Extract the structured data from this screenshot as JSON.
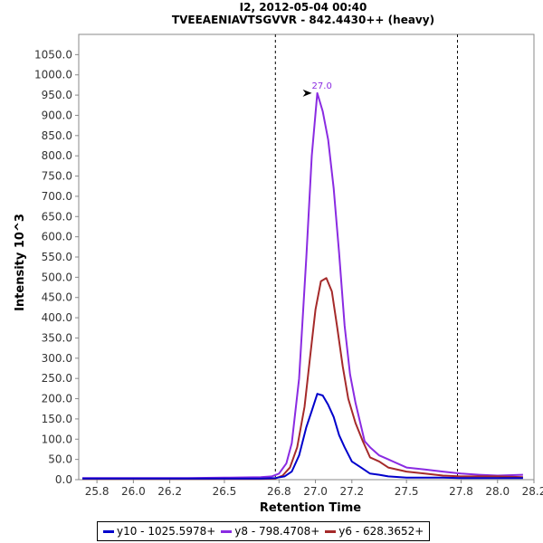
{
  "chart_data": {
    "type": "line",
    "title": "I2, 2012-05-04 00:40",
    "subtitle": "TVEEAENIAVTSGVVR - 842.4430++ (heavy)",
    "xlabel": "Retention Time",
    "ylabel": "Intensity 10^3",
    "xlim": [
      25.7,
      28.2
    ],
    "ylim": [
      0,
      1100
    ],
    "x_ticks": [
      "25.8",
      "26.0",
      "26.2",
      "26.5",
      "26.8",
      "27.0",
      "27.2",
      "27.5",
      "27.8",
      "28.0",
      "28.2"
    ],
    "x_tick_values": [
      25.8,
      26.0,
      26.2,
      26.5,
      26.8,
      27.0,
      27.2,
      27.5,
      27.8,
      28.0,
      28.2
    ],
    "y_ticks": [
      "0.0",
      "50.0",
      "100.0",
      "150.0",
      "200.0",
      "250.0",
      "300.0",
      "350.0",
      "400.0",
      "450.0",
      "500.0",
      "550.0",
      "600.0",
      "650.0",
      "700.0",
      "750.0",
      "800.0",
      "850.0",
      "900.0",
      "950.0",
      "1000.0",
      "1050.0"
    ],
    "y_tick_values": [
      0,
      50,
      100,
      150,
      200,
      250,
      300,
      350,
      400,
      450,
      500,
      550,
      600,
      650,
      700,
      750,
      800,
      850,
      900,
      950,
      1000,
      1050
    ],
    "vlines": [
      26.78,
      27.78
    ],
    "annotation": {
      "text": "27.0",
      "x": 27.0,
      "y": 955,
      "color": "#8a2be2"
    },
    "grid": false,
    "legend_position": "bottom",
    "series": [
      {
        "name": "y10 - 1025.5978+",
        "color": "#0000cc",
        "x": [
          25.72,
          25.9,
          26.1,
          26.3,
          26.5,
          26.7,
          26.78,
          26.83,
          26.87,
          26.91,
          26.95,
          26.98,
          27.01,
          27.04,
          27.07,
          27.1,
          27.13,
          27.16,
          27.2,
          27.25,
          27.3,
          27.35,
          27.4,
          27.5,
          27.6,
          27.7,
          27.8,
          27.9,
          28.0,
          28.14
        ],
        "y": [
          3,
          3,
          3,
          3,
          3,
          3,
          4,
          8,
          20,
          60,
          130,
          170,
          212,
          208,
          185,
          155,
          110,
          80,
          45,
          30,
          15,
          12,
          8,
          5,
          5,
          5,
          4,
          4,
          4,
          4
        ]
      },
      {
        "name": "y8 - 798.4708+",
        "color": "#8a2be2",
        "x": [
          25.72,
          25.9,
          26.1,
          26.3,
          26.5,
          26.7,
          26.76,
          26.8,
          26.84,
          26.87,
          26.91,
          26.95,
          26.98,
          27.01,
          27.04,
          27.07,
          27.1,
          27.13,
          27.16,
          27.19,
          27.22,
          27.27,
          27.3,
          27.35,
          27.4,
          27.5,
          27.6,
          27.7,
          27.8,
          27.9,
          28.0,
          28.14
        ],
        "y": [
          4,
          4,
          4,
          4,
          5,
          6,
          8,
          15,
          40,
          90,
          250,
          550,
          800,
          955,
          910,
          840,
          720,
          560,
          380,
          260,
          190,
          95,
          80,
          60,
          50,
          30,
          25,
          20,
          15,
          12,
          10,
          12
        ]
      },
      {
        "name": "y6 - 628.3652+",
        "color": "#a52a2a",
        "x": [
          25.72,
          25.9,
          26.1,
          26.3,
          26.5,
          26.7,
          26.78,
          26.82,
          26.86,
          26.9,
          26.94,
          26.97,
          27.0,
          27.03,
          27.06,
          27.09,
          27.12,
          27.15,
          27.18,
          27.22,
          27.26,
          27.3,
          27.35,
          27.4,
          27.5,
          27.6,
          27.7,
          27.8,
          27.9,
          28.0,
          28.14
        ],
        "y": [
          2,
          2,
          2,
          2,
          2,
          2,
          3,
          10,
          30,
          80,
          180,
          300,
          420,
          490,
          498,
          465,
          375,
          280,
          200,
          140,
          95,
          55,
          45,
          30,
          20,
          15,
          10,
          8,
          8,
          8,
          6
        ]
      }
    ]
  }
}
